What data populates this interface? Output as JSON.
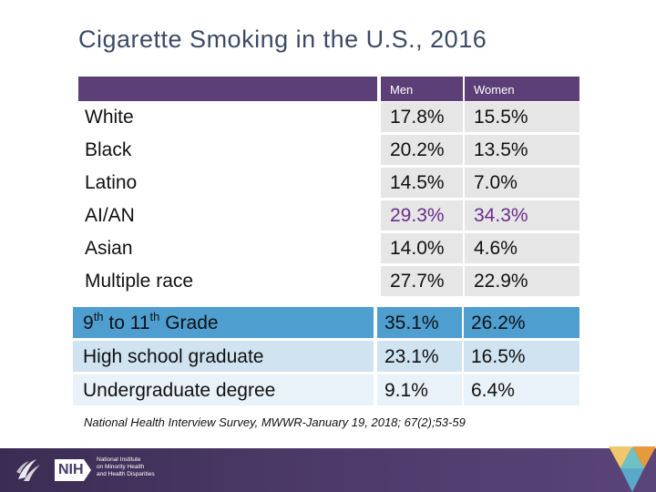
{
  "title": "Cigarette Smoking in the U.S., 2016",
  "table1": {
    "headers": {
      "men": "Men",
      "women": "Women"
    },
    "rows": [
      {
        "label": "White",
        "men": "17.8%",
        "women": "15.5%"
      },
      {
        "label": "Black",
        "men": "20.2%",
        "women": "13.5%"
      },
      {
        "label": "Latino",
        "men": "14.5%",
        "women": "7.0%"
      },
      {
        "label": "AI/AN",
        "men": "29.3%",
        "women": "34.3%"
      },
      {
        "label": "Asian",
        "men": "14.0%",
        "women": "4.6%"
      },
      {
        "label": "Multiple race",
        "men": "27.7%",
        "women": "22.9%"
      }
    ]
  },
  "table2": {
    "rows": [
      {
        "label_a": "9",
        "sup_a": "th",
        "label_b": " to 11",
        "sup_b": "th",
        "label_c": " Grade",
        "men": "35.1%",
        "women": "26.2%"
      },
      {
        "label": "High school graduate",
        "men": "23.1%",
        "women": "16.5%"
      },
      {
        "label": "Undergraduate degree",
        "men": "9.1%",
        "women": "6.4%"
      }
    ]
  },
  "source": "National Health Interview Survey, MWWR-January 19, 2018; 67(2);53-59",
  "footer": {
    "nih_mark": "NIH",
    "nih_text_lines": [
      "National Institute",
      "on Minority Health",
      "and Health Disparities"
    ]
  },
  "colors": {
    "purple_header": "#5c3f76",
    "highlight_text": "#6a2d8c",
    "blue_dark": "#4e9ed0",
    "blue_light": "#cfe3f1",
    "footer_bg": "#3b2c53"
  }
}
